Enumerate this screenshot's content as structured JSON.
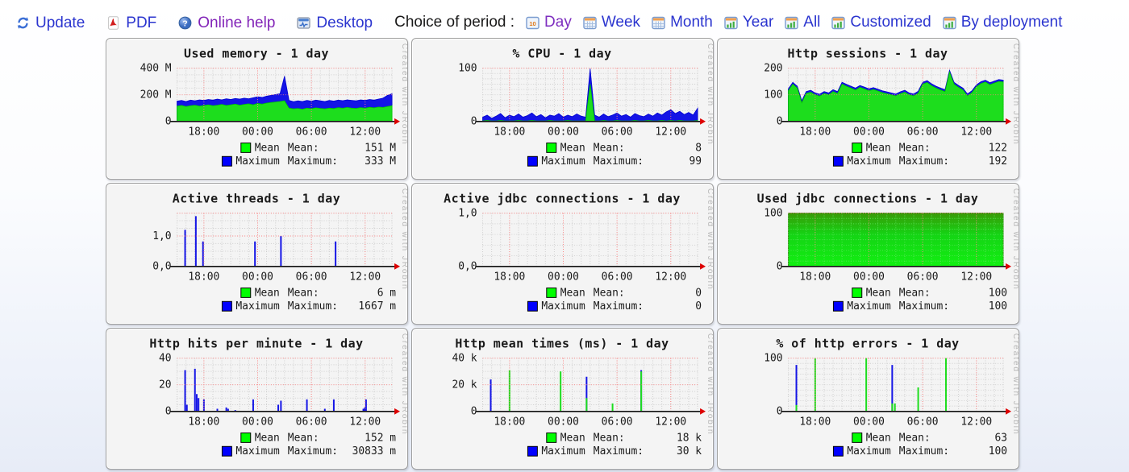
{
  "toolbar": {
    "actions": [
      {
        "id": "update",
        "label": "Update",
        "icon": "refresh-icon",
        "color": "#2b35cf"
      },
      {
        "id": "pdf",
        "label": "PDF",
        "icon": "pdf-icon",
        "color": "#2b35cf"
      },
      {
        "id": "online-help",
        "label": "Online help",
        "icon": "help-icon",
        "color": "#8224b8"
      },
      {
        "id": "desktop",
        "label": "Desktop",
        "icon": "desktop-icon",
        "color": "#2b35cf"
      }
    ],
    "period_label": "Choice of period :",
    "periods": [
      {
        "id": "day",
        "label": "Day",
        "icon": "calendar-day-icon",
        "color": "#7e2fc0"
      },
      {
        "id": "week",
        "label": "Week",
        "icon": "calendar-week-icon",
        "color": "#2b35cf"
      },
      {
        "id": "month",
        "label": "Month",
        "icon": "calendar-month-icon",
        "color": "#2b35cf"
      },
      {
        "id": "year",
        "label": "Year",
        "icon": "calendar-year-icon",
        "color": "#2b35cf"
      },
      {
        "id": "all",
        "label": "All",
        "icon": "calendar-all-icon",
        "color": "#2b35cf"
      },
      {
        "id": "customized",
        "label": "Customized",
        "icon": "calendar-customized-icon",
        "color": "#2b35cf"
      },
      {
        "id": "by-deployment",
        "label": "By deployment",
        "icon": "calendar-deployment-icon",
        "color": "#2b35cf"
      }
    ]
  },
  "watermark": "Created with JRobin",
  "legend": {
    "mean_name": "Mean",
    "maximum_name": "Maximum",
    "mean_label": "Mean:",
    "maximum_label": "Maximum:",
    "mean_color": "#00ff00",
    "maximum_color": "#0000ff"
  },
  "chart_data": [
    {
      "id": "used-memory",
      "type": "area",
      "title": "Used memory - 1 day",
      "ylim": [
        0,
        400
      ],
      "minor_y_step": 50,
      "yticks": [
        {
          "v": 0,
          "label": "0"
        },
        {
          "v": 200,
          "label": "200 M"
        },
        {
          "v": 400,
          "label": "400 M"
        }
      ],
      "xticks": [
        {
          "h": 3,
          "label": "18:00"
        },
        {
          "h": 9,
          "label": "00:00"
        },
        {
          "h": 15,
          "label": "06:00"
        },
        {
          "h": 21,
          "label": "12:00"
        }
      ],
      "x_hours": 24,
      "series": [
        {
          "name": "Maximum",
          "kind": "area",
          "color": "#1414e6",
          "edge": "#0000d0",
          "x_step": 0.5,
          "values": [
            152,
            158,
            150,
            160,
            155,
            162,
            158,
            165,
            160,
            168,
            162,
            170,
            165,
            172,
            168,
            175,
            170,
            178,
            185,
            180,
            190,
            196,
            202,
            208,
            340,
            158,
            148,
            155,
            150,
            158,
            152,
            160,
            155,
            150,
            158,
            153,
            160,
            156,
            162,
            158,
            155,
            162,
            158,
            165,
            160,
            168,
            175,
            196,
            208
          ]
        },
        {
          "name": "Mean",
          "kind": "area",
          "color": "#1ddd1d",
          "edge": "#00c400",
          "x_step": 0.5,
          "values": [
            115,
            120,
            112,
            118,
            122,
            115,
            120,
            125,
            118,
            122,
            128,
            120,
            125,
            130,
            122,
            128,
            132,
            125,
            135,
            130,
            138,
            142,
            146,
            150,
            155,
            100,
            95,
            98,
            92,
            100,
            96,
            102,
            98,
            95,
            100,
            97,
            103,
            99,
            105,
            100,
            98,
            104,
            100,
            106,
            102,
            108,
            105,
            112,
            118
          ]
        }
      ],
      "mean": "151 M",
      "maximum": "333 M"
    },
    {
      "id": "cpu",
      "type": "area",
      "title": "% CPU - 1 day",
      "ylim": [
        0,
        100
      ],
      "minor_y_step": 10,
      "yticks": [
        {
          "v": 0,
          "label": "0"
        },
        {
          "v": 100,
          "label": "100"
        }
      ],
      "xticks": [
        {
          "h": 3,
          "label": "18:00"
        },
        {
          "h": 9,
          "label": "00:00"
        },
        {
          "h": 15,
          "label": "06:00"
        },
        {
          "h": 21,
          "label": "12:00"
        }
      ],
      "x_hours": 24,
      "series": [
        {
          "name": "Maximum",
          "kind": "area",
          "color": "#1414e6",
          "edge": "#0000d0",
          "x_step": 0.5,
          "values": [
            8,
            12,
            6,
            10,
            15,
            7,
            12,
            9,
            14,
            8,
            11,
            16,
            9,
            13,
            7,
            12,
            10,
            15,
            8,
            12,
            9,
            14,
            10,
            8,
            99,
            12,
            8,
            14,
            9,
            12,
            16,
            10,
            13,
            8,
            15,
            11,
            9,
            14,
            10,
            16,
            12,
            18,
            22,
            15,
            19,
            13,
            17,
            12,
            25
          ]
        },
        {
          "name": "Mean",
          "kind": "area",
          "color": "#1ddd1d",
          "edge": "#00c400",
          "x_step": 0.5,
          "values": [
            1,
            2,
            1,
            1,
            2,
            1,
            1,
            1,
            2,
            1,
            1,
            2,
            1,
            1,
            1,
            2,
            1,
            1,
            1,
            2,
            1,
            1,
            1,
            1,
            70,
            1,
            1,
            2,
            1,
            1,
            2,
            1,
            1,
            1,
            2,
            1,
            1,
            2,
            1,
            1,
            2,
            1,
            2,
            1,
            2,
            1,
            1,
            1,
            2
          ]
        }
      ],
      "mean": "8",
      "maximum": "99"
    },
    {
      "id": "http-sessions",
      "type": "area",
      "title": "Http sessions - 1 day",
      "ylim": [
        0,
        200
      ],
      "minor_y_step": 25,
      "yticks": [
        {
          "v": 0,
          "label": "0"
        },
        {
          "v": 100,
          "label": "100"
        },
        {
          "v": 200,
          "label": "200"
        }
      ],
      "xticks": [
        {
          "h": 3,
          "label": "18:00"
        },
        {
          "h": 9,
          "label": "00:00"
        },
        {
          "h": 15,
          "label": "06:00"
        },
        {
          "h": 21,
          "label": "12:00"
        }
      ],
      "x_hours": 24,
      "series": [
        {
          "name": "Maximum",
          "kind": "area",
          "color": "#1414e6",
          "edge": "#0000d0",
          "x_step": 0.5,
          "values": [
            122,
            147,
            132,
            78,
            112,
            117,
            107,
            102,
            112,
            107,
            119,
            112,
            147,
            139,
            132,
            125,
            135,
            129,
            122,
            127,
            121,
            115,
            111,
            107,
            103,
            111,
            117,
            107,
            103,
            113,
            147,
            153,
            141,
            132,
            125,
            119,
            192,
            147,
            135,
            125,
            103,
            115,
            137,
            149,
            155,
            145,
            151,
            157,
            155
          ]
        },
        {
          "name": "Mean",
          "kind": "area",
          "color": "#1ddd1d",
          "edge": "#00c400",
          "x_step": 0.5,
          "values": [
            115,
            140,
            125,
            70,
            105,
            110,
            100,
            95,
            105,
            100,
            112,
            105,
            140,
            132,
            125,
            118,
            128,
            122,
            115,
            120,
            114,
            108,
            104,
            100,
            96,
            104,
            110,
            100,
            96,
            106,
            140,
            146,
            134,
            125,
            118,
            112,
            185,
            140,
            128,
            118,
            96,
            108,
            130,
            142,
            148,
            138,
            144,
            150,
            148
          ]
        }
      ],
      "mean": "122",
      "maximum": "192"
    },
    {
      "id": "active-threads",
      "type": "spike",
      "title": "Active threads - 1 day",
      "ylim": [
        0,
        1.75
      ],
      "minor_y_step": 0.25,
      "yticks": [
        {
          "v": 0,
          "label": "0,0"
        },
        {
          "v": 1,
          "label": "1,0"
        }
      ],
      "xticks": [
        {
          "h": 3,
          "label": "18:00"
        },
        {
          "h": 9,
          "label": "00:00"
        },
        {
          "h": 15,
          "label": "06:00"
        },
        {
          "h": 21,
          "label": "12:00"
        }
      ],
      "x_hours": 24,
      "series": [
        {
          "name": "Maximum",
          "kind": "spike",
          "color": "#1414e6",
          "points": [
            [
              0.9,
              1.2
            ],
            [
              2.1,
              1.65
            ],
            [
              2.9,
              0.82
            ],
            [
              8.7,
              0.82
            ],
            [
              11.6,
              1.0
            ],
            [
              17.7,
              0.82
            ]
          ]
        }
      ],
      "mean": "6 m",
      "maximum": "1667 m"
    },
    {
      "id": "active-jdbc-connections",
      "type": "spike",
      "title": "Active jdbc connections - 1 day",
      "ylim": [
        0,
        1
      ],
      "minor_y_step": 0.2,
      "yticks": [
        {
          "v": 0,
          "label": "0,0"
        },
        {
          "v": 1,
          "label": "1,0"
        }
      ],
      "xticks": [
        {
          "h": 3,
          "label": "18:00"
        },
        {
          "h": 9,
          "label": "00:00"
        },
        {
          "h": 15,
          "label": "06:00"
        },
        {
          "h": 21,
          "label": "12:00"
        }
      ],
      "x_hours": 24,
      "series": [],
      "mean": "0",
      "maximum": "0"
    },
    {
      "id": "used-jdbc-connections",
      "type": "area",
      "title": "Used jdbc connections - 1 day",
      "ylim": [
        0,
        100
      ],
      "minor_y_step": 10,
      "grid_over": true,
      "yticks": [
        {
          "v": 0,
          "label": "0"
        },
        {
          "v": 100,
          "label": "100"
        }
      ],
      "xticks": [
        {
          "h": 3,
          "label": "18:00"
        },
        {
          "h": 9,
          "label": "00:00"
        },
        {
          "h": 15,
          "label": "06:00"
        },
        {
          "h": 21,
          "label": "12:00"
        }
      ],
      "x_hours": 24,
      "series": [
        {
          "name": "Mean",
          "kind": "area",
          "color": "#14d414",
          "gradient": true,
          "edge": "#2a7a00",
          "x_step": 24,
          "values": [
            100,
            100
          ]
        }
      ],
      "mean": "100",
      "maximum": "100"
    },
    {
      "id": "http-hits-per-minute",
      "type": "spike",
      "title": "Http hits per minute - 1 day",
      "ylim": [
        0,
        40
      ],
      "minor_y_step": 5,
      "yticks": [
        {
          "v": 0,
          "label": "0"
        },
        {
          "v": 20,
          "label": "20"
        },
        {
          "v": 40,
          "label": "40"
        }
      ],
      "xticks": [
        {
          "h": 3,
          "label": "18:00"
        },
        {
          "h": 9,
          "label": "00:00"
        },
        {
          "h": 15,
          "label": "06:00"
        },
        {
          "h": 21,
          "label": "12:00"
        }
      ],
      "x_hours": 24,
      "series": [
        {
          "name": "Maximum",
          "kind": "spike",
          "color": "#1414e6",
          "points": [
            [
              0.9,
              31
            ],
            [
              1.1,
              5
            ],
            [
              2.0,
              32
            ],
            [
              2.2,
              13
            ],
            [
              2.4,
              10
            ],
            [
              3.0,
              9
            ],
            [
              4.5,
              2
            ],
            [
              5.5,
              3
            ],
            [
              5.7,
              2
            ],
            [
              6.5,
              1
            ],
            [
              8.5,
              9
            ],
            [
              11.3,
              5
            ],
            [
              11.6,
              8
            ],
            [
              14.5,
              9
            ],
            [
              16.5,
              2
            ],
            [
              17.5,
              9
            ],
            [
              20.8,
              2
            ],
            [
              20.95,
              3
            ],
            [
              21.1,
              9
            ]
          ]
        }
      ],
      "mean": "152 m",
      "maximum": "30833 m"
    },
    {
      "id": "http-mean-times",
      "type": "spike",
      "title": "Http mean times (ms) - 1 day",
      "ylim": [
        0,
        40
      ],
      "minor_y_step": 5,
      "yticks": [
        {
          "v": 0,
          "label": "0"
        },
        {
          "v": 20,
          "label": "20 k"
        },
        {
          "v": 40,
          "label": "40 k"
        }
      ],
      "xticks": [
        {
          "h": 3,
          "label": "18:00"
        },
        {
          "h": 9,
          "label": "00:00"
        },
        {
          "h": 15,
          "label": "06:00"
        },
        {
          "h": 21,
          "label": "12:00"
        }
      ],
      "x_hours": 24,
      "series": [
        {
          "name": "Maximum",
          "kind": "spike",
          "color": "#1414e6",
          "points": [
            [
              0.9,
              24
            ],
            [
              11.6,
              26
            ],
            [
              17.7,
              31
            ]
          ]
        },
        {
          "name": "Mean",
          "kind": "spike",
          "color": "#1ddd1d",
          "points": [
            [
              3.0,
              31
            ],
            [
              8.7,
              30
            ],
            [
              11.6,
              10
            ],
            [
              14.5,
              6
            ],
            [
              17.7,
              30
            ]
          ]
        }
      ],
      "mean": "18 k",
      "maximum": "30 k"
    },
    {
      "id": "http-errors",
      "type": "spike",
      "title": "% of http errors - 1 day",
      "ylim": [
        0,
        100
      ],
      "minor_y_step": 10,
      "yticks": [
        {
          "v": 0,
          "label": "0"
        },
        {
          "v": 100,
          "label": "100"
        }
      ],
      "xticks": [
        {
          "h": 3,
          "label": "18:00"
        },
        {
          "h": 9,
          "label": "00:00"
        },
        {
          "h": 15,
          "label": "06:00"
        },
        {
          "h": 21,
          "label": "12:00"
        }
      ],
      "x_hours": 24,
      "series": [
        {
          "name": "Maximum",
          "kind": "spike",
          "color": "#1414e6",
          "points": [
            [
              0.9,
              87
            ],
            [
              11.6,
              87
            ]
          ]
        },
        {
          "name": "Mean",
          "kind": "spike",
          "color": "#1ddd1d",
          "points": [
            [
              0.9,
              12
            ],
            [
              3.0,
              100
            ],
            [
              8.7,
              100
            ],
            [
              11.6,
              15
            ],
            [
              11.9,
              15
            ],
            [
              14.5,
              45
            ],
            [
              17.6,
              100
            ]
          ]
        }
      ],
      "mean": "63",
      "maximum": "100"
    }
  ]
}
